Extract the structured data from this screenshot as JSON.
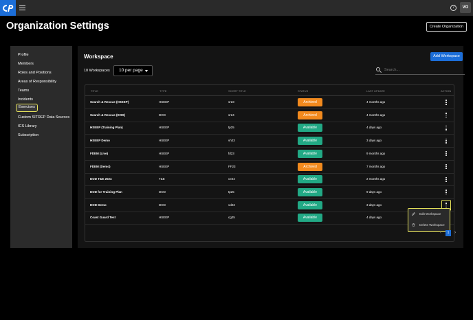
{
  "app": {
    "logo": "cP"
  },
  "header": {
    "avatar_initials": "VO",
    "help_glyph": "?"
  },
  "page": {
    "title": "Organization Settings",
    "create_org_label": "Create Organization"
  },
  "sidebar": {
    "items": [
      {
        "label": "Profile"
      },
      {
        "label": "Members"
      },
      {
        "label": "Roles and Positions"
      },
      {
        "label": "Areas of Responsibility"
      },
      {
        "label": "Teams"
      },
      {
        "label": "Incidents"
      },
      {
        "label": "Exercises",
        "active": true
      },
      {
        "label": "Custom SITREP Data Sources"
      },
      {
        "label": "ICS Library"
      },
      {
        "label": "Subscription"
      }
    ]
  },
  "workspace": {
    "title": "Workspace",
    "add_label": "Add Workspace",
    "count_label": "10 Workspaces",
    "per_page": "10 per page",
    "search_placeholder": "Search...",
    "columns": [
      "TITLE",
      "TYPE",
      "SHORT TITLE",
      "STATUS",
      "LAST UPDATE",
      "ACTION"
    ],
    "rows": [
      {
        "title": "Search & Rescue (HSEEP)",
        "type": "HSEEP",
        "short": "sr23",
        "status": "Archived",
        "updated": "4 months ago"
      },
      {
        "title": "Search & Rescue (DOD)",
        "type": "DOD",
        "short": "sr24",
        "status": "Archived",
        "updated": "4 months ago"
      },
      {
        "title": "HSEEP (Training Plan)",
        "type": "HSEEP",
        "short": "tp25",
        "status": "Available",
        "updated": "4 days ago"
      },
      {
        "title": "HSEEP Demo",
        "type": "HSEEP",
        "short": "vh23",
        "status": "Available",
        "updated": "3 days ago"
      },
      {
        "title": "FDEM (Live)",
        "type": "HSEEP",
        "short": "fd23",
        "status": "Available",
        "updated": "9 months ago"
      },
      {
        "title": "FDEM (Demo)",
        "type": "HSEEP",
        "short": "FF23",
        "status": "Archived",
        "updated": "7 months ago"
      },
      {
        "title": "DOD T&E 2024",
        "type": "T&E",
        "short": "ce24",
        "status": "Available",
        "updated": "2 months ago"
      },
      {
        "title": "DOD for Training Plan",
        "type": "DOD",
        "short": "tp25",
        "status": "Available",
        "updated": "9 days ago"
      },
      {
        "title": "DOD Demo",
        "type": "DOD",
        "short": "vd23",
        "status": "Available",
        "updated": "3 days ago"
      },
      {
        "title": "Coast Guard Test",
        "type": "HSEEP",
        "short": "cg25",
        "status": "Available",
        "updated": "4 days ago"
      }
    ],
    "menu": {
      "edit": "Edit Workspace",
      "delete": "Delete Workspace"
    },
    "pagination": {
      "current": "1",
      "prev": "‹",
      "next": "›"
    }
  },
  "colors": {
    "accent": "#1c6ed8",
    "available": "#22a985",
    "archived": "#f28a1e",
    "highlight": "#e7e35a"
  }
}
